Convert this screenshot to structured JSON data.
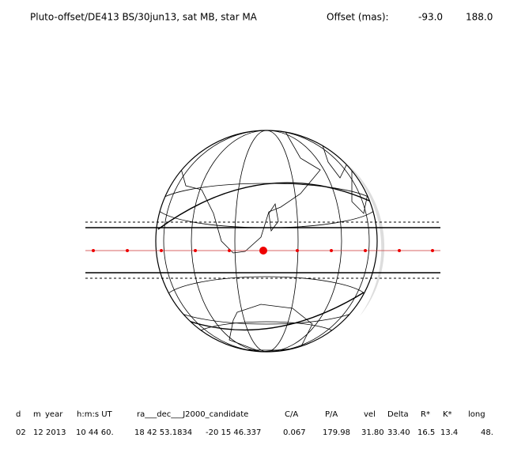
{
  "header": {
    "title": "Pluto-offset/DE413 BS/30jun13, sat MB, star MA",
    "offset_label": "Offset (mas):",
    "offset_values": [
      "-93.0",
      "188.0"
    ]
  },
  "table": {
    "columns": [
      "d",
      "m",
      "year",
      "h:m:s UT",
      "ra___dec___J2000_candidate",
      "C/A",
      "P/A",
      "vel",
      "Delta",
      "R*",
      "K*",
      "long"
    ],
    "row": [
      "02",
      "12",
      "2013",
      "10 44 60.",
      "18 42 53.1834",
      "-20 15 46.337",
      "0.067",
      "179.98",
      "31.80",
      "33.40",
      "16.5",
      "13.4",
      "48."
    ]
  }
}
